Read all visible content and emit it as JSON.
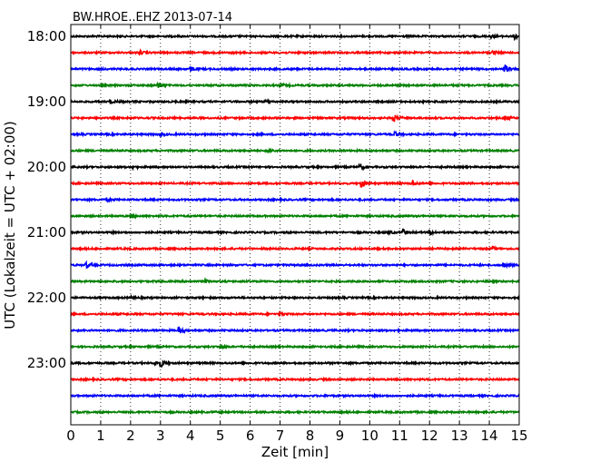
{
  "chart_data": {
    "type": "line",
    "title": "BW.HROE..EHZ 2013-07-14",
    "xlabel": "Zeit  [min]",
    "ylabel": "UTC (Lokalzeit = UTC + 02:00)",
    "xlim": [
      0,
      15
    ],
    "xticks": [
      0,
      1,
      2,
      3,
      4,
      5,
      6,
      7,
      8,
      9,
      10,
      11,
      12,
      13,
      14,
      15
    ],
    "grid_x": "dotted vertical at each minute",
    "yticks": [
      "18:00",
      "19:00",
      "20:00",
      "21:00",
      "22:00",
      "23:00"
    ],
    "line_start_utc": "18:00",
    "line_interval_min": 15,
    "line_count": 24,
    "color_cycle": [
      "#000000",
      "#ff0000",
      "#0000ff",
      "#008000"
    ],
    "events": [
      {
        "line": 0,
        "x": 14.0,
        "amp": 0.4
      },
      {
        "line": 0,
        "x": 14.85,
        "amp": 0.6
      },
      {
        "line": 1,
        "x": 2.3,
        "amp": 0.3
      },
      {
        "line": 1,
        "x": 14.1,
        "amp": 0.4
      },
      {
        "line": 2,
        "x": 4.0,
        "amp": 0.5
      },
      {
        "line": 2,
        "x": 14.5,
        "amp": 1.0
      },
      {
        "line": 3,
        "x": 2.9,
        "amp": 0.7
      },
      {
        "line": 3,
        "x": 7.0,
        "amp": 0.3
      },
      {
        "line": 4,
        "x": 1.3,
        "amp": 0.4
      },
      {
        "line": 4,
        "x": 6.5,
        "amp": 0.3
      },
      {
        "line": 5,
        "x": 10.75,
        "amp": 1.0
      },
      {
        "line": 5,
        "x": 14.5,
        "amp": 0.5
      },
      {
        "line": 6,
        "x": 10.8,
        "amp": 0.6
      },
      {
        "line": 6,
        "x": 3.0,
        "amp": 0.3
      },
      {
        "line": 7,
        "x": 6.6,
        "amp": 0.4
      },
      {
        "line": 8,
        "x": 9.65,
        "amp": 0.5
      },
      {
        "line": 8,
        "x": 2.0,
        "amp": 0.3
      },
      {
        "line": 9,
        "x": 9.7,
        "amp": 1.0
      },
      {
        "line": 9,
        "x": 11.4,
        "amp": 0.4
      },
      {
        "line": 10,
        "x": 1.2,
        "amp": 0.3
      },
      {
        "line": 11,
        "x": 2.0,
        "amp": 0.3
      },
      {
        "line": 12,
        "x": 11.1,
        "amp": 0.7
      },
      {
        "line": 12,
        "x": 12.0,
        "amp": 0.5
      },
      {
        "line": 12,
        "x": 10.6,
        "amp": 0.4
      },
      {
        "line": 13,
        "x": 14.1,
        "amp": 0.3
      },
      {
        "line": 14,
        "x": 0.5,
        "amp": 0.6
      },
      {
        "line": 14,
        "x": 14.45,
        "amp": 0.6
      },
      {
        "line": 15,
        "x": 4.5,
        "amp": 0.3
      },
      {
        "line": 16,
        "x": 2.0,
        "amp": 0.3
      },
      {
        "line": 17,
        "x": 7.0,
        "amp": 0.3
      },
      {
        "line": 18,
        "x": 3.6,
        "amp": 0.6
      },
      {
        "line": 19,
        "x": 5.0,
        "amp": 0.3
      },
      {
        "line": 20,
        "x": 3.0,
        "amp": 0.7
      },
      {
        "line": 20,
        "x": 2.8,
        "amp": 0.5
      }
    ]
  }
}
